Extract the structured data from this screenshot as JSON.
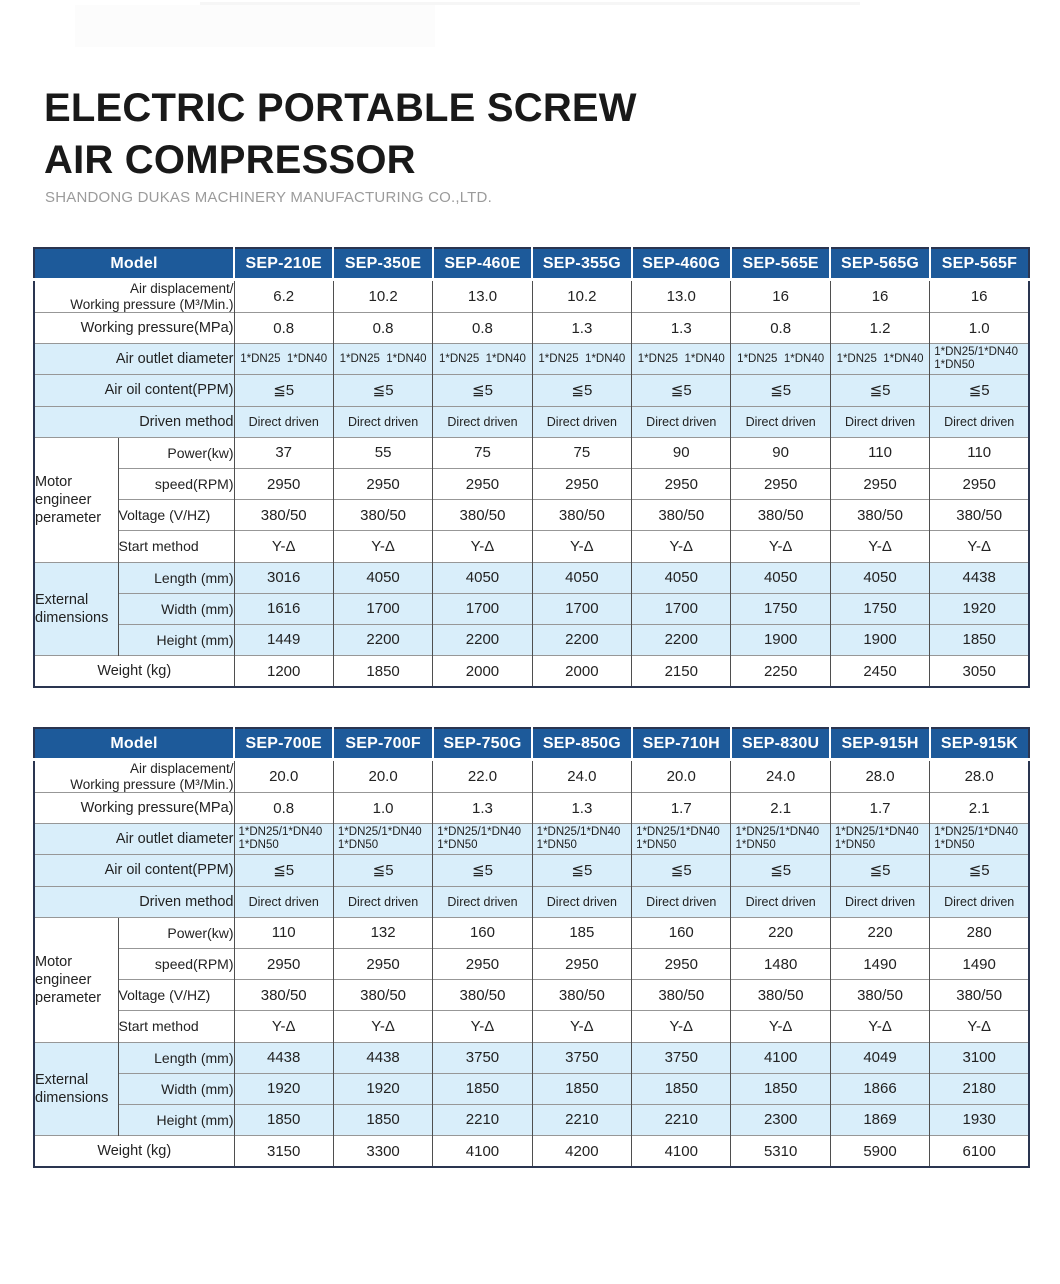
{
  "page": {
    "title_line1": "ELECTRIC PORTABLE SCREW",
    "title_line2": "AIR COMPRESSOR",
    "subtitle": "SHANDONG DUKAS MACHINERY MANUFACTURING CO.,LTD."
  },
  "colors": {
    "header_blue": "#1d5a9a",
    "band_light_blue": "#d9eefa",
    "outer_border": "#2a3550",
    "title_text": "#191919",
    "subtitle_gray": "#9b9b9b"
  },
  "labels": {
    "model": "Model",
    "air_displacement_l1": "Air displacement/",
    "air_displacement_l2": "Working pressure (M³/Min.)",
    "working_pressure": "Working pressure(MPa)",
    "air_outlet": "Air outlet diameter",
    "air_oil": "Air oil content(PPM)",
    "driven_method": "Driven method",
    "motor_group": "Motor engineer perameter",
    "power": "Power(kw)",
    "speed": "speed(RPM)",
    "voltage": "Voltage (V/HZ)",
    "start_method": "Start method",
    "external_group": "External dimensions",
    "length": "Length (mm)",
    "width": "Width (mm)",
    "height": "Height (mm)",
    "weight": "Weight (kg)"
  },
  "tables": [
    {
      "models": [
        "SEP-210E",
        "SEP-350E",
        "SEP-460E",
        "SEP-355G",
        "SEP-460G",
        "SEP-565E",
        "SEP-565G",
        "SEP-565F"
      ],
      "air_displacement": [
        "6.2",
        "10.2",
        "13.0",
        "10.2",
        "13.0",
        "16",
        "16",
        "16"
      ],
      "working_pressure": [
        "0.8",
        "0.8",
        "0.8",
        "1.3",
        "1.3",
        "0.8",
        "1.2",
        "1.0"
      ],
      "air_outlet": [
        [
          "1*DN25  1*DN40"
        ],
        [
          "1*DN25  1*DN40"
        ],
        [
          "1*DN25  1*DN40"
        ],
        [
          "1*DN25  1*DN40"
        ],
        [
          "1*DN25  1*DN40"
        ],
        [
          "1*DN25  1*DN40"
        ],
        [
          "1*DN25  1*DN40"
        ],
        [
          "1*DN25/1*DN40",
          "1*DN50"
        ]
      ],
      "air_oil": [
        "≦5",
        "≦5",
        "≦5",
        "≦5",
        "≦5",
        "≦5",
        "≦5",
        "≦5"
      ],
      "driven_method": [
        "Direct driven",
        "Direct driven",
        "Direct driven",
        "Direct driven",
        "Direct driven",
        "Direct driven",
        "Direct driven",
        "Direct driven"
      ],
      "power": [
        "37",
        "55",
        "75",
        "75",
        "90",
        "90",
        "110",
        "110"
      ],
      "speed": [
        "2950",
        "2950",
        "2950",
        "2950",
        "2950",
        "2950",
        "2950",
        "2950"
      ],
      "voltage": [
        "380/50",
        "380/50",
        "380/50",
        "380/50",
        "380/50",
        "380/50",
        "380/50",
        "380/50"
      ],
      "start_method": [
        "Y-Δ",
        "Y-Δ",
        "Y-Δ",
        "Y-Δ",
        "Y-Δ",
        "Y-Δ",
        "Y-Δ",
        "Y-Δ"
      ],
      "length": [
        "3016",
        "4050",
        "4050",
        "4050",
        "4050",
        "4050",
        "4050",
        "4438"
      ],
      "width": [
        "1616",
        "1700",
        "1700",
        "1700",
        "1700",
        "1750",
        "1750",
        "1920"
      ],
      "height": [
        "1449",
        "2200",
        "2200",
        "2200",
        "2200",
        "1900",
        "1900",
        "1850"
      ],
      "weight": [
        "1200",
        "1850",
        "2000",
        "2000",
        "2150",
        "2250",
        "2450",
        "3050"
      ]
    },
    {
      "models": [
        "SEP-700E",
        "SEP-700F",
        "SEP-750G",
        "SEP-850G",
        "SEP-710H",
        "SEP-830U",
        "SEP-915H",
        "SEP-915K"
      ],
      "air_displacement": [
        "20.0",
        "20.0",
        "22.0",
        "24.0",
        "20.0",
        "24.0",
        "28.0",
        "28.0"
      ],
      "working_pressure": [
        "0.8",
        "1.0",
        "1.3",
        "1.3",
        "1.7",
        "2.1",
        "1.7",
        "2.1"
      ],
      "air_outlet": [
        [
          "1*DN25/1*DN40",
          "1*DN50"
        ],
        [
          "1*DN25/1*DN40",
          "1*DN50"
        ],
        [
          "1*DN25/1*DN40",
          "1*DN50"
        ],
        [
          "1*DN25/1*DN40",
          "1*DN50"
        ],
        [
          "1*DN25/1*DN40",
          "1*DN50"
        ],
        [
          "1*DN25/1*DN40",
          "1*DN50"
        ],
        [
          "1*DN25/1*DN40",
          "1*DN50"
        ],
        [
          "1*DN25/1*DN40",
          "1*DN50"
        ]
      ],
      "air_oil": [
        "≦5",
        "≦5",
        "≦5",
        "≦5",
        "≦5",
        "≦5",
        "≦5",
        "≦5"
      ],
      "driven_method": [
        "Direct driven",
        "Direct driven",
        "Direct driven",
        "Direct driven",
        "Direct driven",
        "Direct driven",
        "Direct driven",
        "Direct driven"
      ],
      "power": [
        "110",
        "132",
        "160",
        "185",
        "160",
        "220",
        "220",
        "280"
      ],
      "speed": [
        "2950",
        "2950",
        "2950",
        "2950",
        "2950",
        "1480",
        "1490",
        "1490"
      ],
      "voltage": [
        "380/50",
        "380/50",
        "380/50",
        "380/50",
        "380/50",
        "380/50",
        "380/50",
        "380/50"
      ],
      "start_method": [
        "Y-Δ",
        "Y-Δ",
        "Y-Δ",
        "Y-Δ",
        "Y-Δ",
        "Y-Δ",
        "Y-Δ",
        "Y-Δ"
      ],
      "length": [
        "4438",
        "4438",
        "3750",
        "3750",
        "3750",
        "4100",
        "4049",
        "3100"
      ],
      "width": [
        "1920",
        "1920",
        "1850",
        "1850",
        "1850",
        "1850",
        "1866",
        "2180"
      ],
      "height": [
        "1850",
        "1850",
        "2210",
        "2210",
        "2210",
        "2300",
        "1869",
        "1930"
      ],
      "weight": [
        "3150",
        "3300",
        "4100",
        "4200",
        "4100",
        "5310",
        "5900",
        "6100"
      ]
    }
  ]
}
